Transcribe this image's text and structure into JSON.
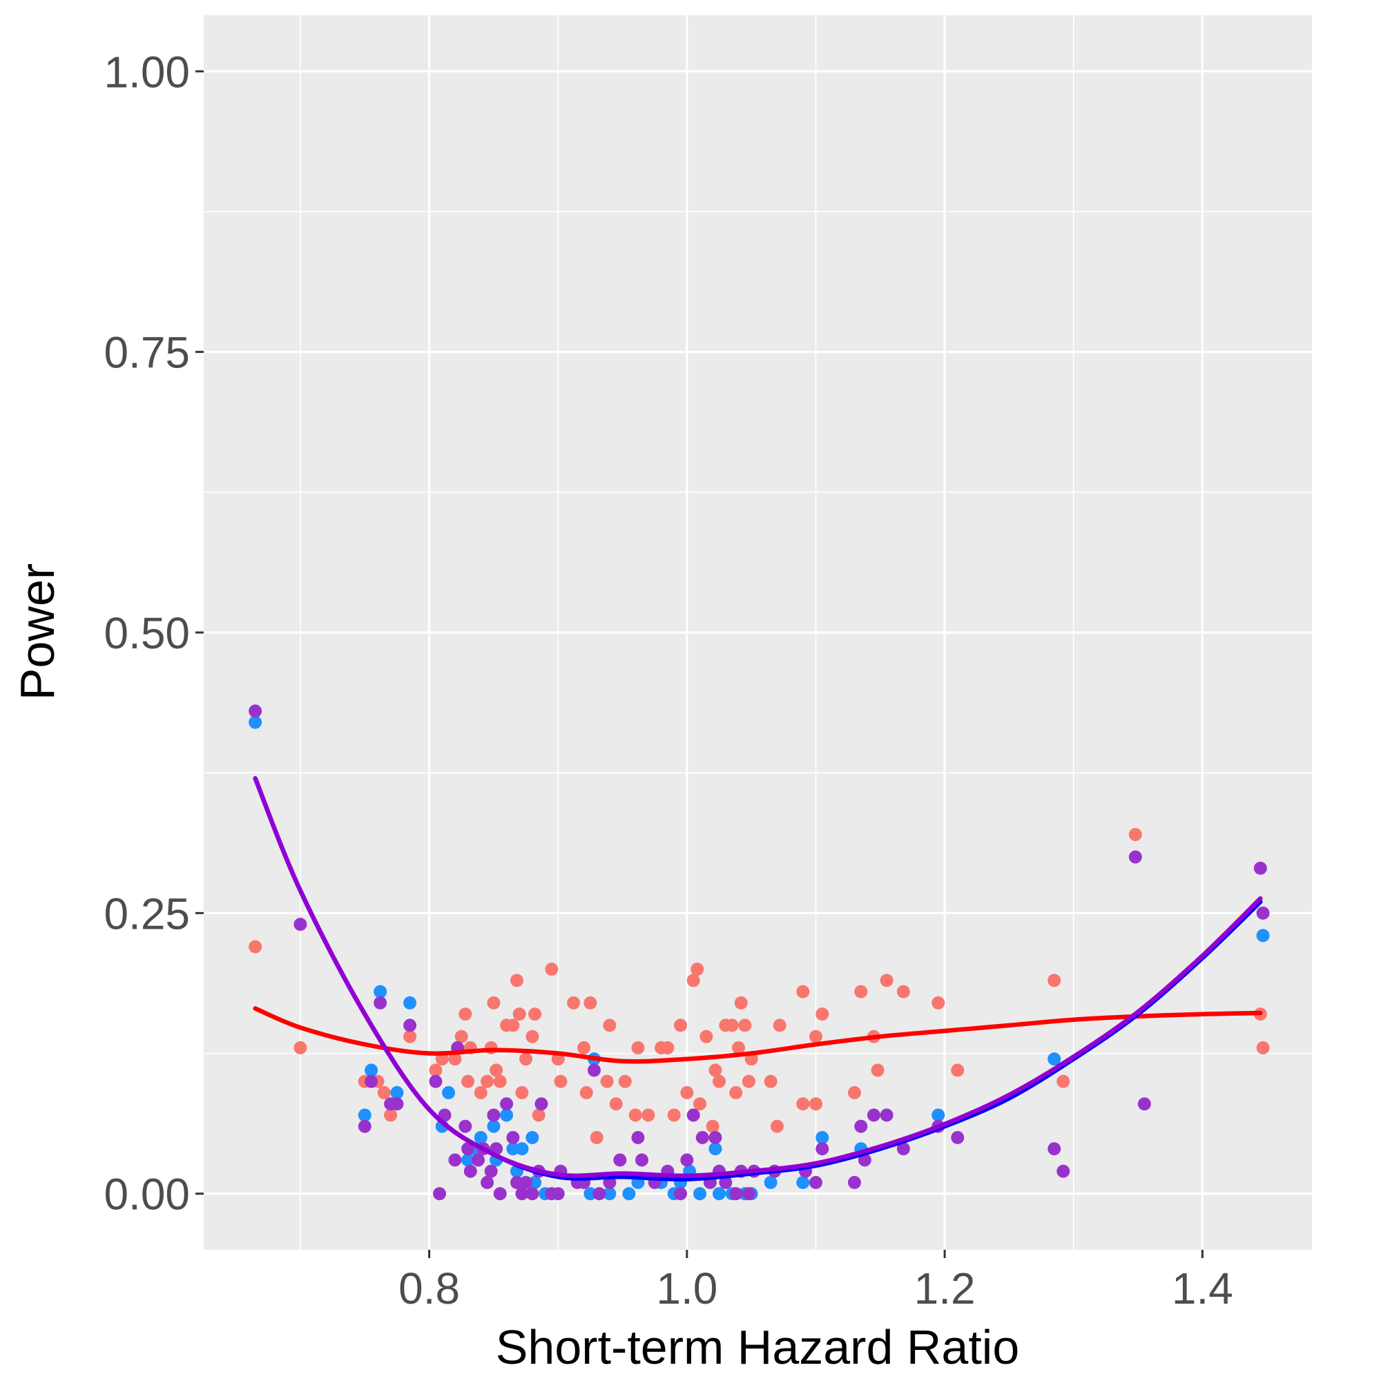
{
  "chart_data": {
    "type": "scatter",
    "xlabel": "Short-term Hazard Ratio",
    "ylabel": "Power",
    "xlim": [
      0.625,
      1.485
    ],
    "ylim": [
      -0.05,
      1.05
    ],
    "x_ticks": [
      "0.8",
      "1.0",
      "1.2",
      "1.4"
    ],
    "y_ticks": [
      "0.00",
      "0.25",
      "0.50",
      "0.75",
      "1.00"
    ],
    "grid": true,
    "legend": "none",
    "colors": {
      "panel_background": "#ebebeb",
      "grid_line": "#ffffff",
      "tick_label": "#4d4d4d",
      "red_points": "#f8766d",
      "blue_points": "#1e90ff",
      "purple_points": "#9932cc",
      "red_smooth": "#ff0000",
      "blue_smooth": "#0000ff",
      "purple_smooth": "#9400d3"
    },
    "series": [
      {
        "color_key": "red",
        "points": [
          [
            0.665,
            0.22
          ],
          [
            0.7,
            0.13
          ],
          [
            0.75,
            0.1
          ],
          [
            0.76,
            0.1
          ],
          [
            0.765,
            0.09
          ],
          [
            0.77,
            0.07
          ],
          [
            0.785,
            0.14
          ],
          [
            0.805,
            0.11
          ],
          [
            0.81,
            0.12
          ],
          [
            0.82,
            0.12
          ],
          [
            0.825,
            0.14
          ],
          [
            0.828,
            0.16
          ],
          [
            0.83,
            0.1
          ],
          [
            0.832,
            0.13
          ],
          [
            0.84,
            0.09
          ],
          [
            0.845,
            0.1
          ],
          [
            0.848,
            0.13
          ],
          [
            0.85,
            0.17
          ],
          [
            0.852,
            0.11
          ],
          [
            0.855,
            0.1
          ],
          [
            0.86,
            0.15
          ],
          [
            0.865,
            0.15
          ],
          [
            0.868,
            0.19
          ],
          [
            0.87,
            0.16
          ],
          [
            0.872,
            0.09
          ],
          [
            0.875,
            0.12
          ],
          [
            0.88,
            0.14
          ],
          [
            0.882,
            0.16
          ],
          [
            0.885,
            0.07
          ],
          [
            0.895,
            0.2
          ],
          [
            0.9,
            0.12
          ],
          [
            0.902,
            0.1
          ],
          [
            0.912,
            0.17
          ],
          [
            0.92,
            0.13
          ],
          [
            0.922,
            0.09
          ],
          [
            0.925,
            0.17
          ],
          [
            0.93,
            0.05
          ],
          [
            0.938,
            0.1
          ],
          [
            0.94,
            0.15
          ],
          [
            0.945,
            0.08
          ],
          [
            0.952,
            0.1
          ],
          [
            0.96,
            0.07
          ],
          [
            0.962,
            0.13
          ],
          [
            0.97,
            0.07
          ],
          [
            0.98,
            0.13
          ],
          [
            0.985,
            0.13
          ],
          [
            0.99,
            0.07
          ],
          [
            0.995,
            0.15
          ],
          [
            1.0,
            0.09
          ],
          [
            1.005,
            0.19
          ],
          [
            1.008,
            0.2
          ],
          [
            1.01,
            0.08
          ],
          [
            1.015,
            0.14
          ],
          [
            1.02,
            0.06
          ],
          [
            1.022,
            0.11
          ],
          [
            1.025,
            0.1
          ],
          [
            1.03,
            0.15
          ],
          [
            1.035,
            0.15
          ],
          [
            1.038,
            0.09
          ],
          [
            1.04,
            0.13
          ],
          [
            1.042,
            0.17
          ],
          [
            1.045,
            0.15
          ],
          [
            1.048,
            0.1
          ],
          [
            1.05,
            0.12
          ],
          [
            1.065,
            0.1
          ],
          [
            1.07,
            0.06
          ],
          [
            1.072,
            0.15
          ],
          [
            1.09,
            0.08
          ],
          [
            1.09,
            0.18
          ],
          [
            1.1,
            0.08
          ],
          [
            1.1,
            0.14
          ],
          [
            1.105,
            0.16
          ],
          [
            1.13,
            0.09
          ],
          [
            1.135,
            0.18
          ],
          [
            1.145,
            0.14
          ],
          [
            1.148,
            0.11
          ],
          [
            1.155,
            0.19
          ],
          [
            1.168,
            0.18
          ],
          [
            1.195,
            0.17
          ],
          [
            1.21,
            0.11
          ],
          [
            1.285,
            0.19
          ],
          [
            1.292,
            0.1
          ],
          [
            1.348,
            0.32
          ],
          [
            1.445,
            0.16
          ],
          [
            1.447,
            0.13
          ]
        ]
      },
      {
        "color_key": "blue",
        "points": [
          [
            0.665,
            0.42
          ],
          [
            0.75,
            0.07
          ],
          [
            0.755,
            0.11
          ],
          [
            0.762,
            0.18
          ],
          [
            0.775,
            0.09
          ],
          [
            0.785,
            0.17
          ],
          [
            0.81,
            0.06
          ],
          [
            0.815,
            0.09
          ],
          [
            0.83,
            0.03
          ],
          [
            0.835,
            0.04
          ],
          [
            0.84,
            0.05
          ],
          [
            0.85,
            0.06
          ],
          [
            0.852,
            0.03
          ],
          [
            0.86,
            0.07
          ],
          [
            0.865,
            0.04
          ],
          [
            0.868,
            0.02
          ],
          [
            0.872,
            0.04
          ],
          [
            0.88,
            0.05
          ],
          [
            0.882,
            0.01
          ],
          [
            0.89,
            0.0
          ],
          [
            0.925,
            0.0
          ],
          [
            0.928,
            0.12
          ],
          [
            0.94,
            0.0
          ],
          [
            0.955,
            0.0
          ],
          [
            0.962,
            0.01
          ],
          [
            0.98,
            0.01
          ],
          [
            0.99,
            0.0
          ],
          [
            0.995,
            0.01
          ],
          [
            1.002,
            0.02
          ],
          [
            1.01,
            0.0
          ],
          [
            1.022,
            0.04
          ],
          [
            1.025,
            0.0
          ],
          [
            1.035,
            0.0
          ],
          [
            1.045,
            0.0
          ],
          [
            1.05,
            0.0
          ],
          [
            1.065,
            0.01
          ],
          [
            1.09,
            0.01
          ],
          [
            1.105,
            0.05
          ],
          [
            1.135,
            0.04
          ],
          [
            1.195,
            0.07
          ],
          [
            1.285,
            0.12
          ],
          [
            1.447,
            0.23
          ]
        ]
      },
      {
        "color_key": "purple",
        "points": [
          [
            0.665,
            0.43
          ],
          [
            0.7,
            0.24
          ],
          [
            0.75,
            0.06
          ],
          [
            0.755,
            0.1
          ],
          [
            0.762,
            0.17
          ],
          [
            0.77,
            0.08
          ],
          [
            0.775,
            0.08
          ],
          [
            0.785,
            0.15
          ],
          [
            0.805,
            0.1
          ],
          [
            0.808,
            0.0
          ],
          [
            0.812,
            0.07
          ],
          [
            0.82,
            0.03
          ],
          [
            0.822,
            0.13
          ],
          [
            0.828,
            0.06
          ],
          [
            0.83,
            0.04
          ],
          [
            0.832,
            0.02
          ],
          [
            0.838,
            0.03
          ],
          [
            0.842,
            0.04
          ],
          [
            0.845,
            0.01
          ],
          [
            0.848,
            0.02
          ],
          [
            0.85,
            0.07
          ],
          [
            0.852,
            0.04
          ],
          [
            0.855,
            0.0
          ],
          [
            0.86,
            0.08
          ],
          [
            0.865,
            0.05
          ],
          [
            0.868,
            0.01
          ],
          [
            0.872,
            0.0
          ],
          [
            0.875,
            0.01
          ],
          [
            0.88,
            0.0
          ],
          [
            0.885,
            0.02
          ],
          [
            0.887,
            0.08
          ],
          [
            0.895,
            0.0
          ],
          [
            0.9,
            0.0
          ],
          [
            0.902,
            0.02
          ],
          [
            0.915,
            0.01
          ],
          [
            0.92,
            0.01
          ],
          [
            0.928,
            0.11
          ],
          [
            0.932,
            0.0
          ],
          [
            0.94,
            0.01
          ],
          [
            0.948,
            0.03
          ],
          [
            0.962,
            0.05
          ],
          [
            0.965,
            0.03
          ],
          [
            0.975,
            0.01
          ],
          [
            0.985,
            0.02
          ],
          [
            0.995,
            0.0
          ],
          [
            1.0,
            0.03
          ],
          [
            1.005,
            0.07
          ],
          [
            1.012,
            0.05
          ],
          [
            1.018,
            0.01
          ],
          [
            1.022,
            0.05
          ],
          [
            1.025,
            0.02
          ],
          [
            1.03,
            0.01
          ],
          [
            1.038,
            0.0
          ],
          [
            1.042,
            0.02
          ],
          [
            1.048,
            0.0
          ],
          [
            1.052,
            0.02
          ],
          [
            1.068,
            0.02
          ],
          [
            1.092,
            0.02
          ],
          [
            1.1,
            0.01
          ],
          [
            1.105,
            0.04
          ],
          [
            1.13,
            0.01
          ],
          [
            1.135,
            0.06
          ],
          [
            1.138,
            0.03
          ],
          [
            1.145,
            0.07
          ],
          [
            1.155,
            0.07
          ],
          [
            1.168,
            0.04
          ],
          [
            1.195,
            0.06
          ],
          [
            1.21,
            0.05
          ],
          [
            1.285,
            0.04
          ],
          [
            1.292,
            0.02
          ],
          [
            1.348,
            0.3
          ],
          [
            1.355,
            0.08
          ],
          [
            1.445,
            0.29
          ],
          [
            1.447,
            0.25
          ]
        ]
      }
    ],
    "smooth_lines": [
      {
        "color_key": "red",
        "points": [
          [
            0.665,
            0.165
          ],
          [
            0.7,
            0.148
          ],
          [
            0.75,
            0.133
          ],
          [
            0.8,
            0.125
          ],
          [
            0.85,
            0.128
          ],
          [
            0.9,
            0.125
          ],
          [
            0.95,
            0.118
          ],
          [
            1.0,
            0.12
          ],
          [
            1.05,
            0.125
          ],
          [
            1.1,
            0.133
          ],
          [
            1.15,
            0.14
          ],
          [
            1.2,
            0.145
          ],
          [
            1.25,
            0.15
          ],
          [
            1.3,
            0.155
          ],
          [
            1.35,
            0.158
          ],
          [
            1.4,
            0.16
          ],
          [
            1.445,
            0.161
          ]
        ]
      },
      {
        "color_key": "blue",
        "points": [
          [
            0.665,
            0.37
          ],
          [
            0.7,
            0.27
          ],
          [
            0.75,
            0.16
          ],
          [
            0.8,
            0.075
          ],
          [
            0.85,
            0.035
          ],
          [
            0.9,
            0.015
          ],
          [
            0.95,
            0.015
          ],
          [
            1.0,
            0.013
          ],
          [
            1.05,
            0.018
          ],
          [
            1.1,
            0.025
          ],
          [
            1.15,
            0.04
          ],
          [
            1.2,
            0.06
          ],
          [
            1.25,
            0.085
          ],
          [
            1.3,
            0.12
          ],
          [
            1.35,
            0.16
          ],
          [
            1.4,
            0.21
          ],
          [
            1.445,
            0.26
          ]
        ]
      },
      {
        "color_key": "purple",
        "points": [
          [
            0.665,
            0.37
          ],
          [
            0.7,
            0.27
          ],
          [
            0.75,
            0.16
          ],
          [
            0.8,
            0.075
          ],
          [
            0.85,
            0.035
          ],
          [
            0.9,
            0.017
          ],
          [
            0.95,
            0.018
          ],
          [
            1.0,
            0.016
          ],
          [
            1.05,
            0.02
          ],
          [
            1.1,
            0.027
          ],
          [
            1.15,
            0.042
          ],
          [
            1.2,
            0.062
          ],
          [
            1.25,
            0.088
          ],
          [
            1.3,
            0.122
          ],
          [
            1.35,
            0.162
          ],
          [
            1.4,
            0.212
          ],
          [
            1.445,
            0.263
          ]
        ]
      }
    ]
  }
}
